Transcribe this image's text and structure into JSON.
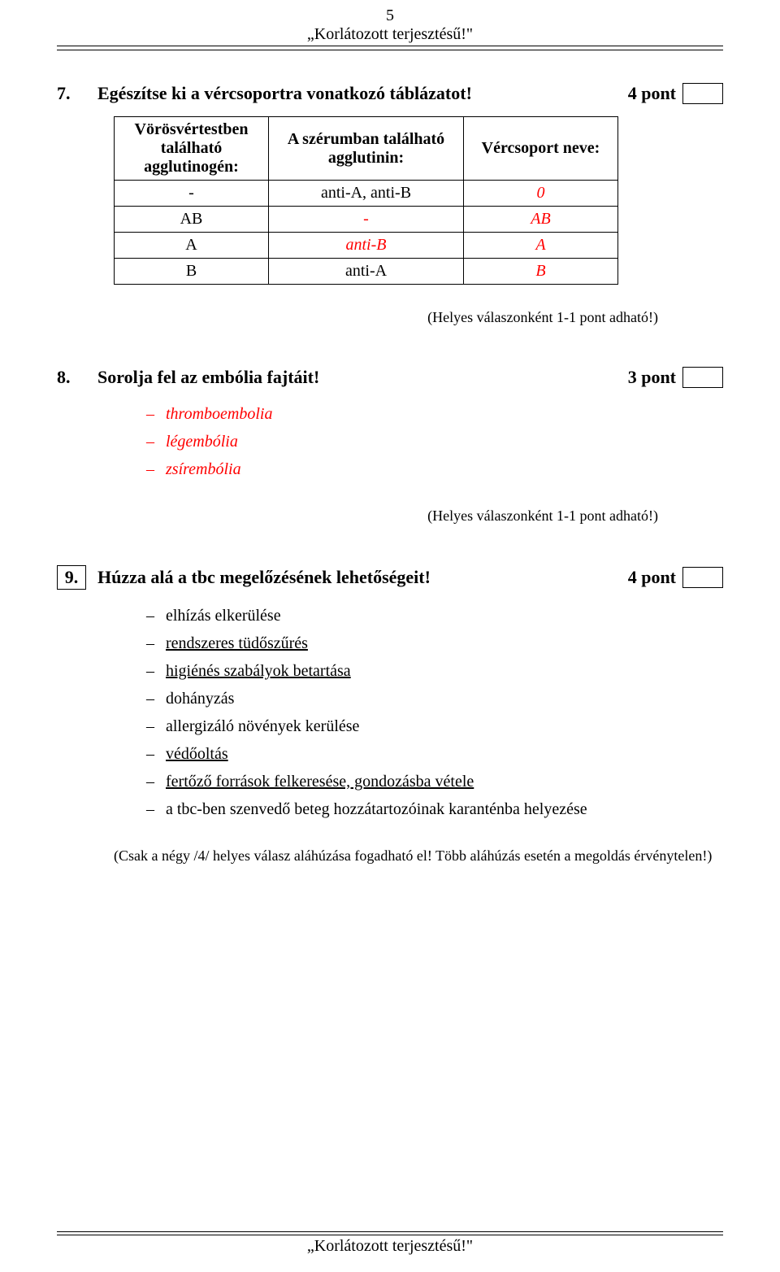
{
  "page": {
    "number": "5",
    "header_text": "„Korlátozott terjesztésű!\"",
    "footer_text": "„Korlátozott terjesztésű!\""
  },
  "q7": {
    "num": "7.",
    "text": "Egészítse ki a vércsoportra vonatkozó táblázatot!",
    "points": "4 pont",
    "table": {
      "h1": "Vörösvértestben található agglutinogén:",
      "h2": "A szérumban található agglutinin:",
      "h3": "Vércsoport neve:",
      "rows": [
        {
          "c1": "-",
          "c2": "anti-A, anti-B",
          "c3": "0",
          "c3_red": true
        },
        {
          "c1": "AB",
          "c2": "-",
          "c3": "AB",
          "c2_red": true,
          "c3_red": true
        },
        {
          "c1": "A",
          "c2": "anti-B",
          "c3": "A",
          "c2_red": true,
          "c3_red": true
        },
        {
          "c1": "B",
          "c2": "anti-A",
          "c3": "B",
          "c3_red": true
        }
      ]
    },
    "note": "(Helyes válaszonként 1-1 pont adható!)"
  },
  "q8": {
    "num": "8.",
    "text": "Sorolja fel az embólia fajtáit!",
    "points": "3 pont",
    "answers": [
      "thromboembolia",
      "légembólia",
      "zsírembólia"
    ],
    "note": "(Helyes válaszonként 1-1 pont adható!)"
  },
  "q9": {
    "num": "9.",
    "text": "Húzza alá a tbc megelőzésének lehetőségeit!",
    "points": "4 pont",
    "options": [
      {
        "text": "elhízás elkerülése",
        "underline": false
      },
      {
        "text": "rendszeres tüdőszűrés",
        "underline": true
      },
      {
        "text": "higiénés szabályok betartása",
        "underline": true
      },
      {
        "text": "dohányzás",
        "underline": false
      },
      {
        "text": "allergizáló növények kerülése",
        "underline": false
      },
      {
        "text": "védőoltás",
        "underline": true
      },
      {
        "text": "fertőző források felkeresése, gondozásba vétele",
        "underline": true
      },
      {
        "text": "a tbc-ben szenvedő beteg hozzátartozóinak karanténba helyezése",
        "underline": false
      }
    ],
    "note": "(Csak a négy /4/ helyes válasz aláhúzása fogadható el! Több aláhúzás esetén a megoldás érvénytelen!)"
  }
}
